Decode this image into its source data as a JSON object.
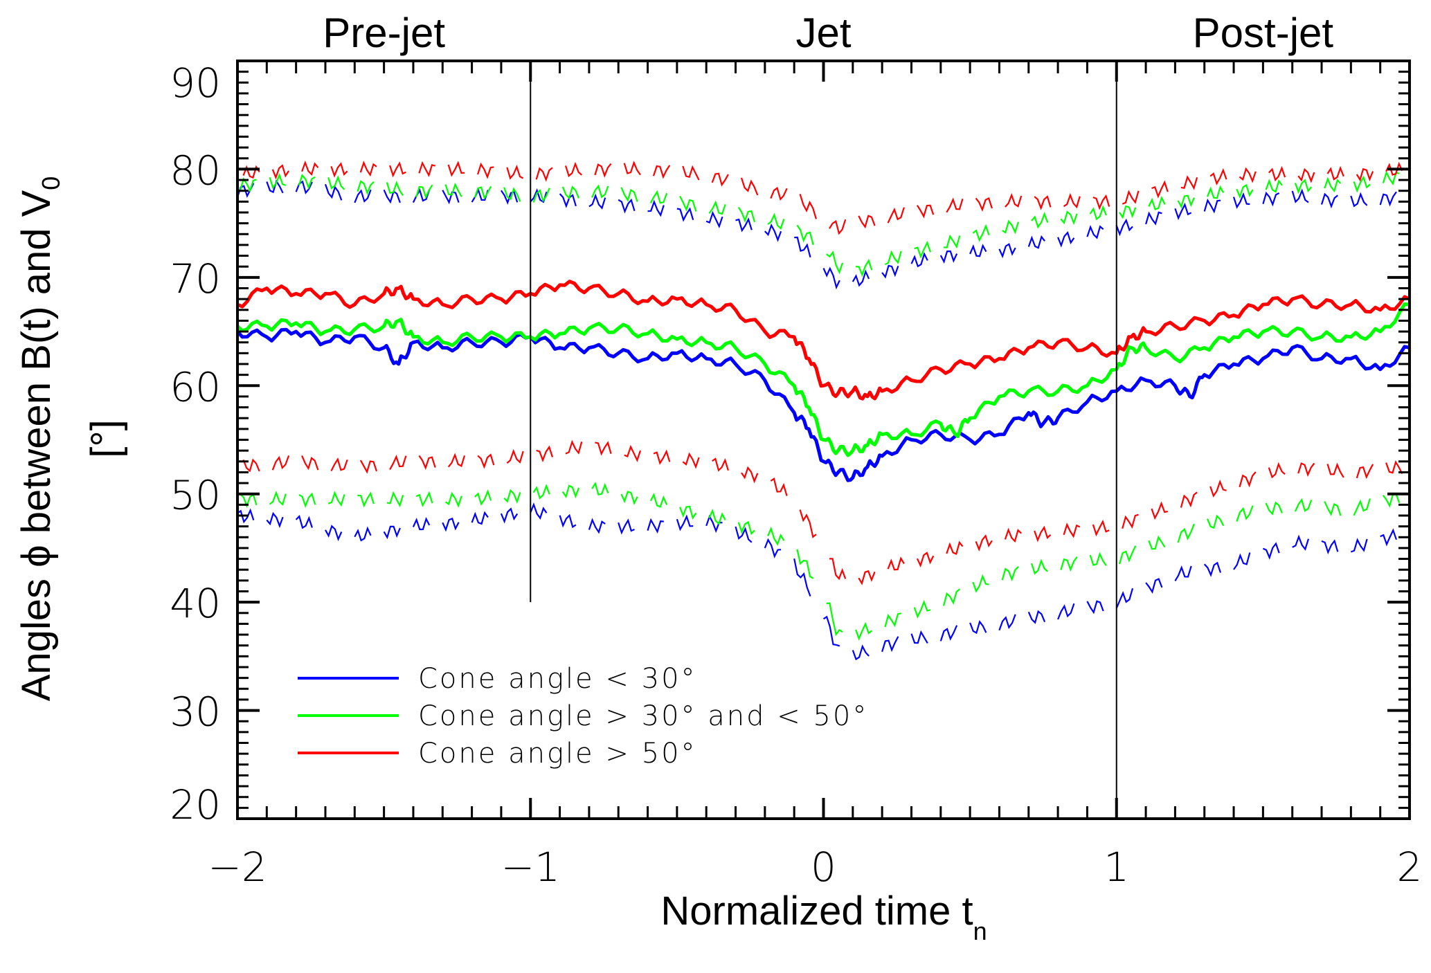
{
  "chart_data": {
    "type": "line",
    "title": "",
    "region_labels": [
      {
        "text": "Pre-jet",
        "x_center": -1.5
      },
      {
        "text": "Jet",
        "x_center": 0.0
      },
      {
        "text": "Post-jet",
        "x_center": 1.5
      }
    ],
    "xlabel": "Normalized time t",
    "xlabel_sub": "n",
    "ylabel": "Angles ϕ  between B(t) and V",
    "ylabel_sub": "0",
    "ylabel_unit": "[°]",
    "xlim": [
      -2,
      2
    ],
    "ylim": [
      20,
      90
    ],
    "xticks": [
      -2,
      -1,
      0,
      1,
      2
    ],
    "xtick_labels": [
      "−2",
      "−1",
      "0",
      "1",
      "2"
    ],
    "xminor_step": 0.1,
    "yticks": [
      20,
      30,
      40,
      50,
      60,
      70,
      80,
      90
    ],
    "ytick_labels": [
      "20",
      "30",
      "40",
      "50",
      "60",
      "70",
      "80",
      "90"
    ],
    "yminor_step": 1,
    "grid": false,
    "vertical_markers": [
      {
        "x": -1,
        "y_from": 40,
        "y_to": 90
      },
      {
        "x": 1,
        "y_from": 20,
        "y_to": 90
      }
    ],
    "legend": {
      "placement": "lower-left",
      "entries": [
        {
          "label": "Cone angle < 30°",
          "color": "#0000ff"
        },
        {
          "label": "Cone angle > 30° and < 50°",
          "color": "#00ff00"
        },
        {
          "label": "Cone angle > 50°",
          "color": "#ff0000"
        }
      ]
    },
    "series": [
      {
        "name": "Cone angle < 30°",
        "color": "#0000ff",
        "style": "solid",
        "x": [
          -2.0,
          -1.9,
          -1.8,
          -1.7,
          -1.6,
          -1.5,
          -1.45,
          -1.4,
          -1.3,
          -1.2,
          -1.1,
          -1.0,
          -0.9,
          -0.8,
          -0.7,
          -0.6,
          -0.5,
          -0.4,
          -0.3,
          -0.2,
          -0.1,
          -0.05,
          0.0,
          0.05,
          0.1,
          0.15,
          0.2,
          0.3,
          0.4,
          0.5,
          0.6,
          0.7,
          0.75,
          0.8,
          0.9,
          1.0,
          1.1,
          1.2,
          1.25,
          1.3,
          1.4,
          1.5,
          1.6,
          1.7,
          1.8,
          1.9,
          2.0
        ],
        "y": [
          65.0,
          64.5,
          65.0,
          64.0,
          64.5,
          63.5,
          62.0,
          64.0,
          63.5,
          64.0,
          64.0,
          64.5,
          63.5,
          63.5,
          63.0,
          62.5,
          63.0,
          62.5,
          62.0,
          60.5,
          57.5,
          56.0,
          53.0,
          52.0,
          51.5,
          52.5,
          53.5,
          55.0,
          55.5,
          55.0,
          55.5,
          57.5,
          56.5,
          57.0,
          58.5,
          59.5,
          60.5,
          60.0,
          59.0,
          61.0,
          62.0,
          62.5,
          63.5,
          62.5,
          62.5,
          61.5,
          63.5
        ]
      },
      {
        "name": "Cone angle > 30° and < 50°",
        "color": "#00ff00",
        "style": "solid",
        "x": [
          -2.0,
          -1.9,
          -1.8,
          -1.7,
          -1.6,
          -1.5,
          -1.45,
          -1.4,
          -1.3,
          -1.2,
          -1.1,
          -1.0,
          -0.9,
          -0.8,
          -0.7,
          -0.6,
          -0.5,
          -0.4,
          -0.3,
          -0.2,
          -0.1,
          -0.05,
          0.0,
          0.05,
          0.1,
          0.15,
          0.2,
          0.3,
          0.4,
          0.45,
          0.5,
          0.6,
          0.7,
          0.8,
          0.9,
          1.0,
          1.05,
          1.1,
          1.2,
          1.3,
          1.4,
          1.5,
          1.6,
          1.7,
          1.8,
          1.9,
          2.0
        ],
        "y": [
          65.5,
          65.5,
          65.8,
          65.0,
          65.2,
          65.5,
          66.0,
          64.5,
          64.0,
          64.5,
          64.5,
          64.5,
          64.8,
          65.3,
          65.3,
          64.8,
          64.3,
          64.0,
          63.5,
          62.0,
          60.0,
          58.0,
          55.0,
          54.0,
          54.0,
          54.5,
          55.5,
          55.5,
          56.5,
          55.5,
          57.0,
          59.0,
          59.5,
          59.5,
          60.0,
          61.5,
          63.5,
          63.5,
          62.5,
          63.5,
          64.5,
          65.0,
          65.0,
          64.5,
          64.5,
          65.0,
          67.5
        ]
      },
      {
        "name": "Cone angle > 50°",
        "color": "#ff0000",
        "style": "solid",
        "x": [
          -2.0,
          -1.9,
          -1.8,
          -1.7,
          -1.6,
          -1.5,
          -1.45,
          -1.4,
          -1.3,
          -1.2,
          -1.1,
          -1.0,
          -0.9,
          -0.8,
          -0.7,
          -0.6,
          -0.5,
          -0.4,
          -0.3,
          -0.2,
          -0.1,
          -0.05,
          0.0,
          0.05,
          0.1,
          0.15,
          0.2,
          0.3,
          0.4,
          0.5,
          0.6,
          0.7,
          0.8,
          0.9,
          1.0,
          1.05,
          1.1,
          1.2,
          1.3,
          1.4,
          1.5,
          1.6,
          1.7,
          1.8,
          1.9,
          2.0
        ],
        "y": [
          67.5,
          69.0,
          68.5,
          68.5,
          67.5,
          68.5,
          69.0,
          68.0,
          67.5,
          68.0,
          68.0,
          68.5,
          69.3,
          69.0,
          68.5,
          67.8,
          68.0,
          67.5,
          67.0,
          65.0,
          64.5,
          62.5,
          60.0,
          59.3,
          59.5,
          59.0,
          59.5,
          60.5,
          61.5,
          62.0,
          62.5,
          63.5,
          64.0,
          63.5,
          63.0,
          64.5,
          65.0,
          65.5,
          66.0,
          66.5,
          67.5,
          68.0,
          67.5,
          67.5,
          67.0,
          68.0
        ]
      },
      {
        "name": "Cone angle < 30° upper",
        "color": "#0000ff",
        "style": "dashed",
        "x": [
          -2.0,
          -1.8,
          -1.6,
          -1.4,
          -1.2,
          -1.0,
          -0.8,
          -0.6,
          -0.4,
          -0.2,
          -0.1,
          0.0,
          0.05,
          0.1,
          0.2,
          0.4,
          0.6,
          0.8,
          1.0,
          1.2,
          1.4,
          1.6,
          1.8,
          2.0
        ],
        "y": [
          78.0,
          78.5,
          77.5,
          77.5,
          77.5,
          77.5,
          77.0,
          76.5,
          75.5,
          74.5,
          73.5,
          71.0,
          69.5,
          69.5,
          70.5,
          72.0,
          72.5,
          73.5,
          74.5,
          76.0,
          77.0,
          77.5,
          77.0,
          77.5
        ]
      },
      {
        "name": "Cone angle > 30° and < 50° upper",
        "color": "#00ff00",
        "style": "dashed",
        "x": [
          -2.0,
          -1.8,
          -1.6,
          -1.4,
          -1.2,
          -1.0,
          -0.8,
          -0.6,
          -0.4,
          -0.2,
          -0.1,
          0.0,
          0.05,
          0.1,
          0.2,
          0.4,
          0.6,
          0.8,
          1.0,
          1.2,
          1.4,
          1.6,
          1.8,
          2.0
        ],
        "y": [
          78.5,
          79.0,
          78.5,
          78.0,
          78.0,
          77.5,
          78.0,
          77.5,
          76.5,
          75.5,
          74.5,
          73.0,
          71.0,
          70.5,
          71.5,
          73.0,
          74.5,
          75.5,
          76.0,
          77.0,
          78.0,
          78.5,
          78.5,
          79.5
        ]
      },
      {
        "name": "Cone angle > 50° upper",
        "color": "#ff0000",
        "style": "dashed",
        "x": [
          -2.0,
          -1.8,
          -1.6,
          -1.4,
          -1.2,
          -1.0,
          -0.8,
          -0.6,
          -0.4,
          -0.2,
          -0.1,
          0.0,
          0.05,
          0.1,
          0.2,
          0.4,
          0.6,
          0.8,
          1.0,
          1.2,
          1.4,
          1.6,
          1.8,
          2.0
        ],
        "y": [
          79.5,
          80.0,
          80.0,
          80.0,
          80.0,
          79.5,
          80.0,
          80.0,
          79.5,
          78.0,
          77.5,
          75.5,
          74.5,
          75.0,
          75.5,
          76.5,
          77.0,
          77.0,
          77.0,
          78.5,
          79.5,
          79.5,
          79.5,
          80.0
        ]
      },
      {
        "name": "Cone angle < 30° lower",
        "color": "#0000ff",
        "style": "dashed",
        "x": [
          -2.0,
          -1.8,
          -1.6,
          -1.4,
          -1.2,
          -1.0,
          -0.8,
          -0.6,
          -0.4,
          -0.2,
          -0.1,
          0.0,
          0.05,
          0.1,
          0.2,
          0.4,
          0.6,
          0.8,
          1.0,
          1.2,
          1.4,
          1.6,
          1.8,
          2.0
        ],
        "y": [
          48.0,
          47.5,
          46.0,
          47.0,
          47.5,
          48.5,
          47.0,
          47.0,
          47.5,
          45.5,
          43.5,
          39.0,
          35.5,
          35.0,
          36.0,
          37.0,
          38.0,
          39.0,
          40.0,
          42.5,
          43.5,
          45.5,
          45.0,
          46.5
        ]
      },
      {
        "name": "Cone angle > 30° and < 50° lower",
        "color": "#00ff00",
        "style": "dashed",
        "x": [
          -2.0,
          -1.8,
          -1.6,
          -1.4,
          -1.2,
          -1.0,
          -0.8,
          -0.6,
          -0.4,
          -0.2,
          -0.1,
          0.0,
          0.05,
          0.1,
          0.2,
          0.4,
          0.6,
          0.8,
          1.0,
          1.2,
          1.4,
          1.6,
          1.8,
          2.0
        ],
        "y": [
          49.5,
          49.5,
          49.5,
          49.5,
          49.5,
          50.0,
          50.5,
          49.5,
          48.0,
          46.5,
          45.0,
          41.0,
          37.0,
          37.0,
          38.0,
          40.0,
          42.5,
          43.5,
          44.0,
          46.0,
          48.0,
          49.0,
          48.5,
          50.0
        ]
      },
      {
        "name": "Cone angle > 50° lower",
        "color": "#ff0000",
        "style": "dashed",
        "x": [
          -2.0,
          -1.8,
          -1.6,
          -1.4,
          -1.2,
          -1.0,
          -0.8,
          -0.6,
          -0.4,
          -0.2,
          -0.1,
          0.0,
          0.05,
          0.1,
          0.2,
          0.4,
          0.6,
          0.8,
          1.0,
          1.2,
          1.4,
          1.6,
          1.8,
          2.0
        ],
        "y": [
          52.5,
          53.0,
          52.5,
          53.0,
          53.0,
          53.5,
          54.5,
          53.5,
          53.0,
          51.5,
          49.5,
          45.0,
          42.5,
          42.0,
          43.0,
          44.5,
          46.0,
          46.5,
          47.0,
          49.0,
          51.0,
          52.5,
          52.0,
          52.5
        ]
      }
    ]
  }
}
